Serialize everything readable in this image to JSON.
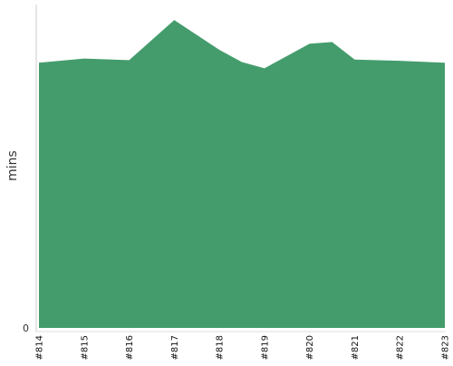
{
  "chart_data": {
    "type": "area",
    "ylabel": "mins",
    "categories": [
      "#814",
      "#815",
      "#816",
      "#817",
      "#818",
      "#819",
      "#820",
      "#821",
      "#822",
      "#823"
    ],
    "x": [
      0,
      1,
      2,
      3,
      4,
      4.5,
      5,
      6,
      6.5,
      7,
      8,
      9
    ],
    "values": [
      82,
      83.3,
      82.8,
      95.2,
      86,
      82.2,
      80.3,
      87.9,
      88.4,
      83,
      82.6,
      82
    ],
    "ytick_labels": [
      "0"
    ],
    "ylim": [
      0,
      100
    ],
    "color": "#449c6c",
    "grid": false,
    "legend": "none"
  }
}
